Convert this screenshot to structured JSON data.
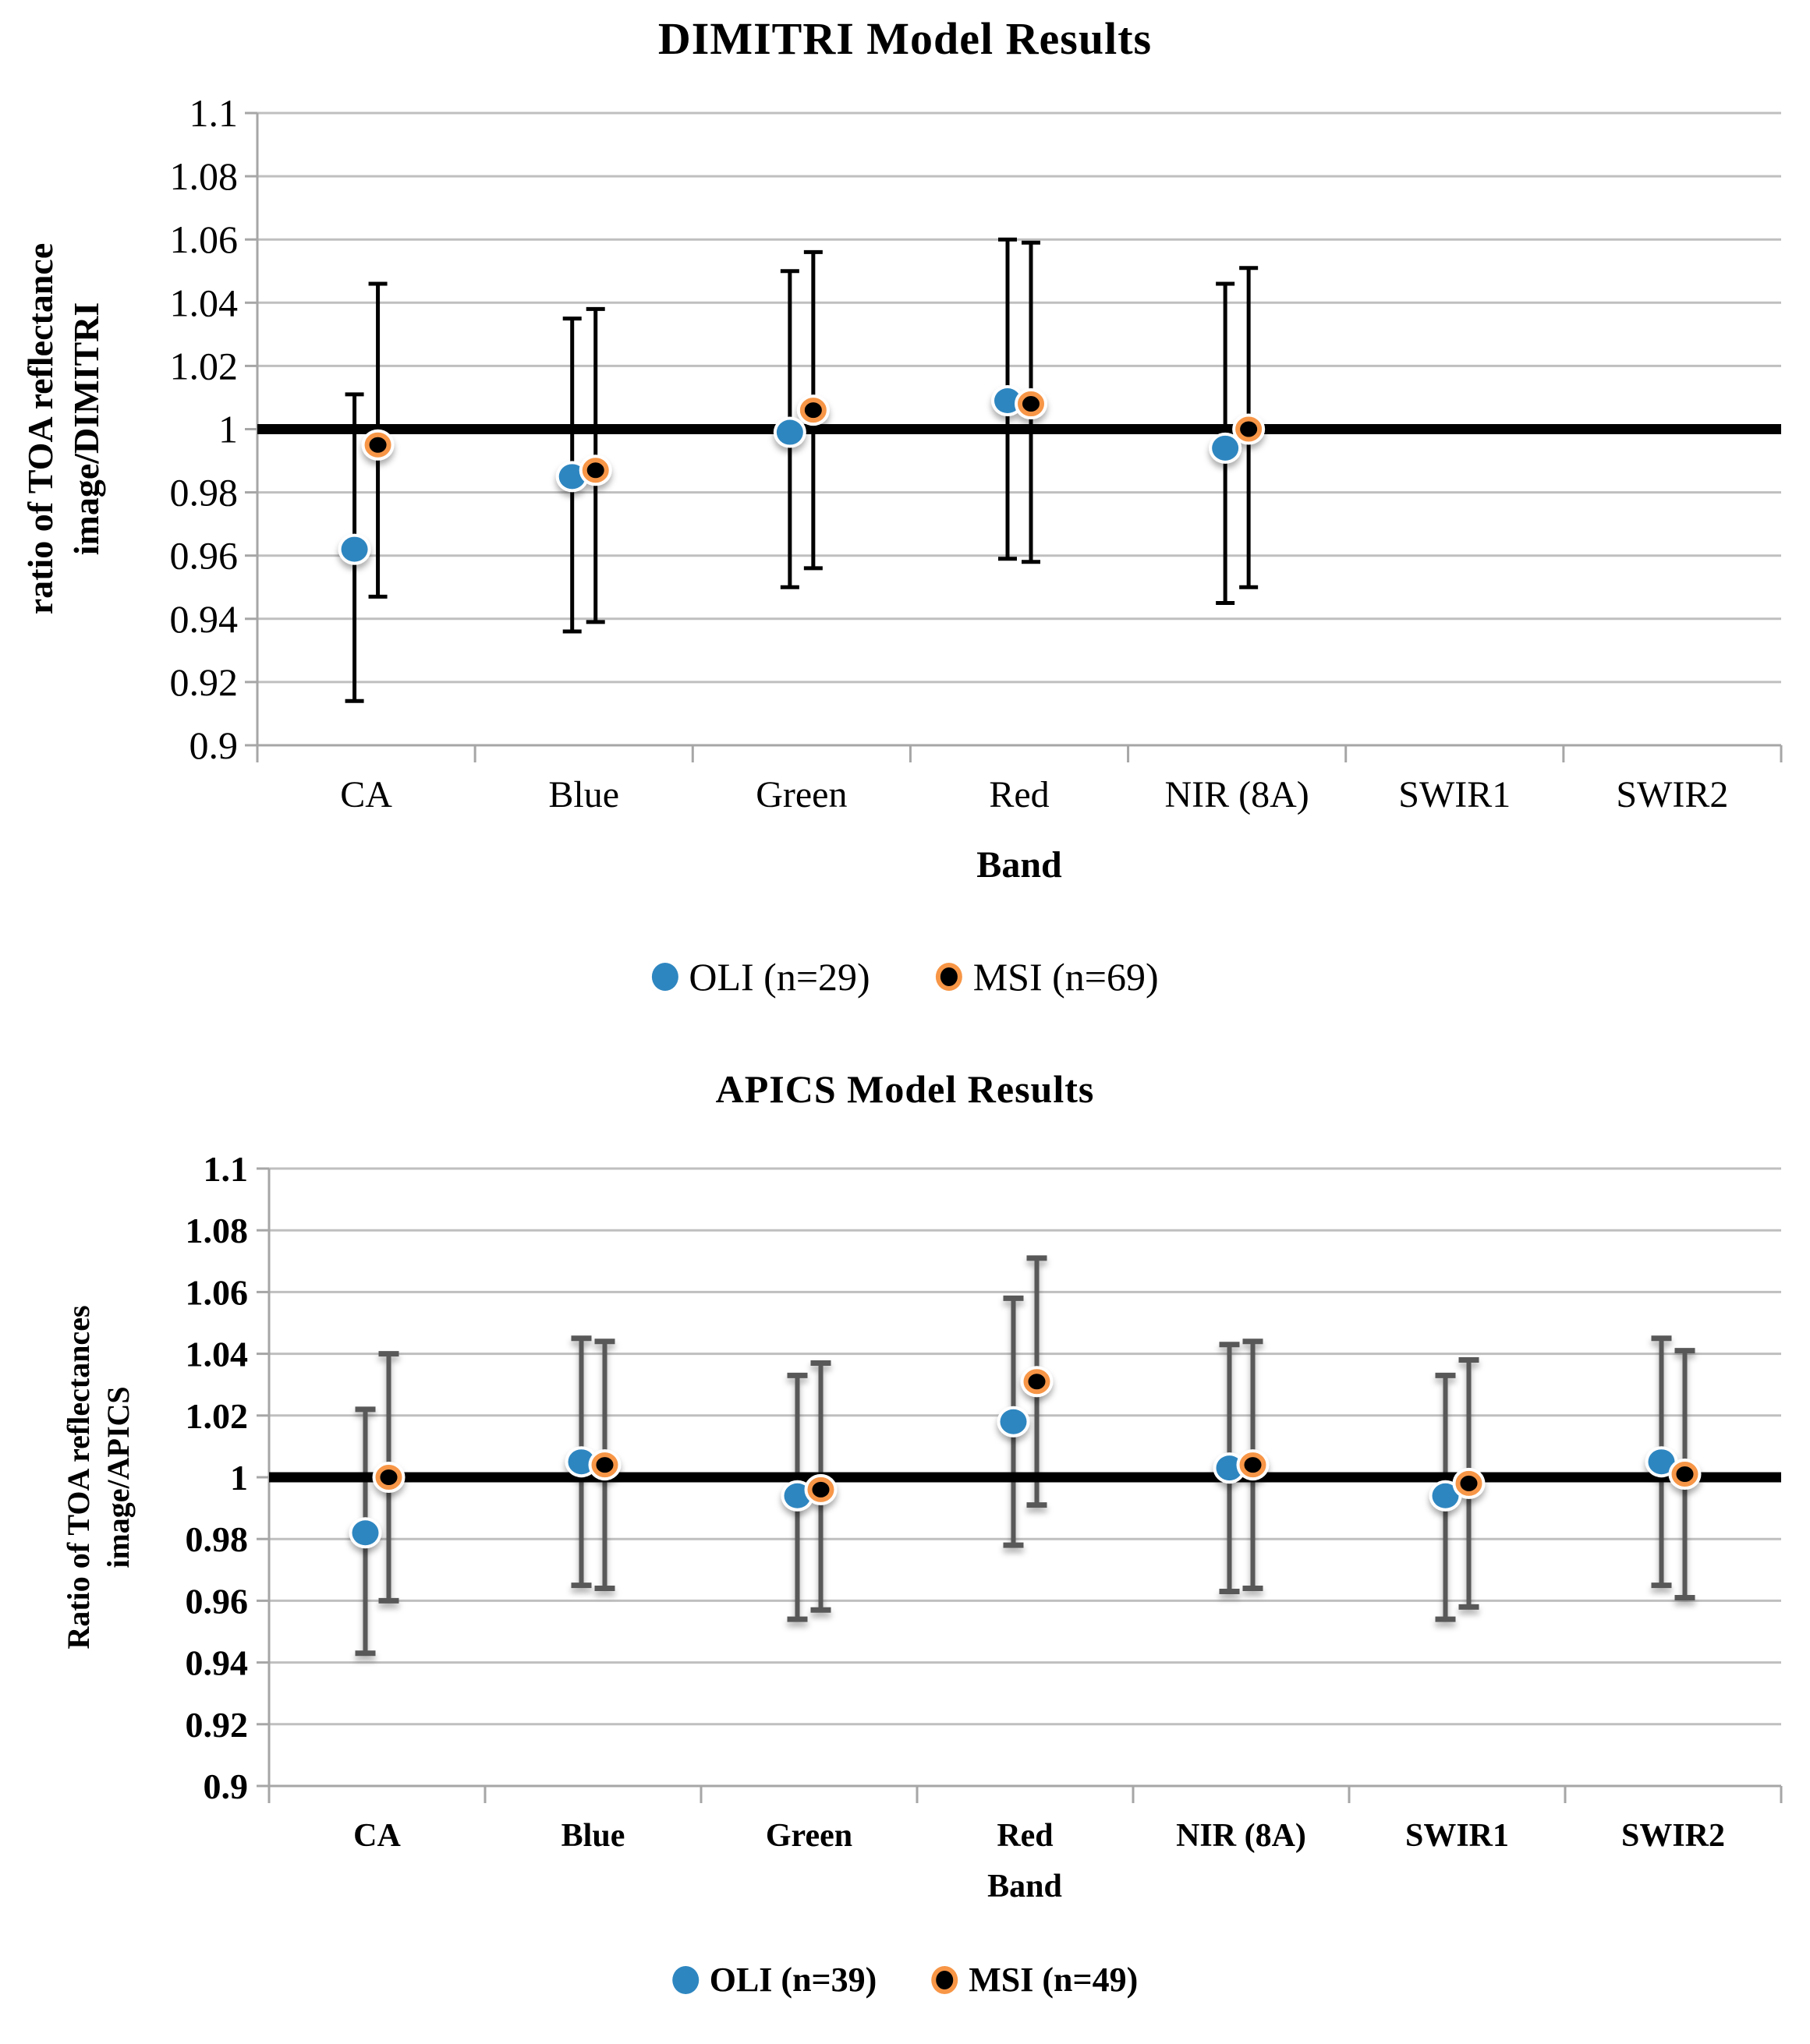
{
  "charts": [
    {
      "title": "DIMITRI Model Results",
      "y_axis_title_line1": "ratio of TOA reflectance",
      "y_axis_title_line2": "image/DIMITRI",
      "x_axis_title": "Band",
      "legend": [
        {
          "label": "OLI (n=29)",
          "marker": "blue-circle-icon"
        },
        {
          "label": "MSI (n=69)",
          "marker": "black-circle-orange-ring-icon"
        }
      ]
    },
    {
      "title": "APICS Model Results",
      "y_axis_title_line1": "Ratio of TOA reflectances",
      "y_axis_title_line2": "image/APICS",
      "x_axis_title": "Band",
      "legend": [
        {
          "label": "OLI (n=39)",
          "marker": "blue-circle-icon"
        },
        {
          "label": "MSI (n=49)",
          "marker": "black-circle-orange-ring-icon"
        }
      ]
    }
  ],
  "colors": {
    "oli_marker": "#2E86C0",
    "msi_marker_fill": "#000000",
    "msi_marker_ring": "#F79646",
    "errorbar_chart1": "#000000",
    "errorbar_chart2": "#595959",
    "gridline": "#BFBFBF",
    "axis": "#A6A6A6",
    "reference_line": "#000000",
    "background": "#FFFFFF"
  },
  "chart_data": [
    {
      "type": "scatter",
      "title": "DIMITRI Model Results",
      "xlabel": "Band",
      "ylabel": "ratio of TOA reflectance image/DIMITRI",
      "categories": [
        "CA",
        "Blue",
        "Green",
        "Red",
        "NIR (8A)",
        "SWIR1",
        "SWIR2"
      ],
      "ylim": [
        0.9,
        1.1
      ],
      "yticks": [
        1.1,
        1.08,
        1.06,
        1.04,
        1.02,
        1.0,
        0.98,
        0.96,
        0.94,
        0.92,
        0.9
      ],
      "ytick_labels": [
        "1.1",
        "1.08",
        "1.06",
        "1.04",
        "1.02",
        "1",
        "0.98",
        "0.96",
        "0.94",
        "0.92",
        "0.9"
      ],
      "grid": true,
      "reference_line": 1.0,
      "legend_position": "bottom",
      "errorbar_color": "#000000",
      "series": [
        {
          "name": "OLI (n=29)",
          "marker_color": "#2E86C0",
          "marker_ring": null,
          "values": [
            0.962,
            0.985,
            0.999,
            1.009,
            0.994,
            null,
            null
          ],
          "err_upper": [
            1.011,
            1.035,
            1.05,
            1.06,
            1.046,
            null,
            null
          ],
          "err_lower": [
            0.914,
            0.936,
            0.95,
            0.959,
            0.945,
            null,
            null
          ]
        },
        {
          "name": "MSI (n=69)",
          "marker_color": "#000000",
          "marker_ring": "#F79646",
          "values": [
            0.995,
            0.987,
            1.006,
            1.008,
            1.0,
            null,
            null
          ],
          "err_upper": [
            1.046,
            1.038,
            1.056,
            1.059,
            1.051,
            null,
            null
          ],
          "err_lower": [
            0.947,
            0.939,
            0.956,
            0.958,
            0.95,
            null,
            null
          ]
        }
      ]
    },
    {
      "type": "scatter",
      "title": "APICS Model Results",
      "xlabel": "Band",
      "ylabel": "Ratio of TOA reflectances image/APICS",
      "categories": [
        "CA",
        "Blue",
        "Green",
        "Red",
        "NIR (8A)",
        "SWIR1",
        "SWIR2"
      ],
      "ylim": [
        0.9,
        1.1
      ],
      "yticks": [
        1.1,
        1.08,
        1.06,
        1.04,
        1.02,
        1.0,
        0.98,
        0.96,
        0.94,
        0.92,
        0.9
      ],
      "ytick_labels": [
        "1.1",
        "1.08",
        "1.06",
        "1.04",
        "1.02",
        "1",
        "0.98",
        "0.96",
        "0.94",
        "0.92",
        "0.9"
      ],
      "grid": true,
      "reference_line": 1.0,
      "legend_position": "bottom",
      "errorbar_color": "#595959",
      "series": [
        {
          "name": "OLI (n=39)",
          "marker_color": "#2E86C0",
          "marker_ring": null,
          "values": [
            0.982,
            1.005,
            0.994,
            1.018,
            1.003,
            0.994,
            1.005
          ],
          "err_upper": [
            1.022,
            1.045,
            1.033,
            1.058,
            1.043,
            1.033,
            1.045
          ],
          "err_lower": [
            0.943,
            0.965,
            0.954,
            0.978,
            0.963,
            0.954,
            0.965
          ]
        },
        {
          "name": "MSI (n=49)",
          "marker_color": "#000000",
          "marker_ring": "#F79646",
          "values": [
            1.0,
            1.004,
            0.996,
            1.031,
            1.004,
            0.998,
            1.001
          ],
          "err_upper": [
            1.04,
            1.044,
            1.037,
            1.071,
            1.044,
            1.038,
            1.041
          ],
          "err_lower": [
            0.96,
            0.964,
            0.957,
            0.991,
            0.964,
            0.958,
            0.961
          ]
        }
      ]
    }
  ]
}
